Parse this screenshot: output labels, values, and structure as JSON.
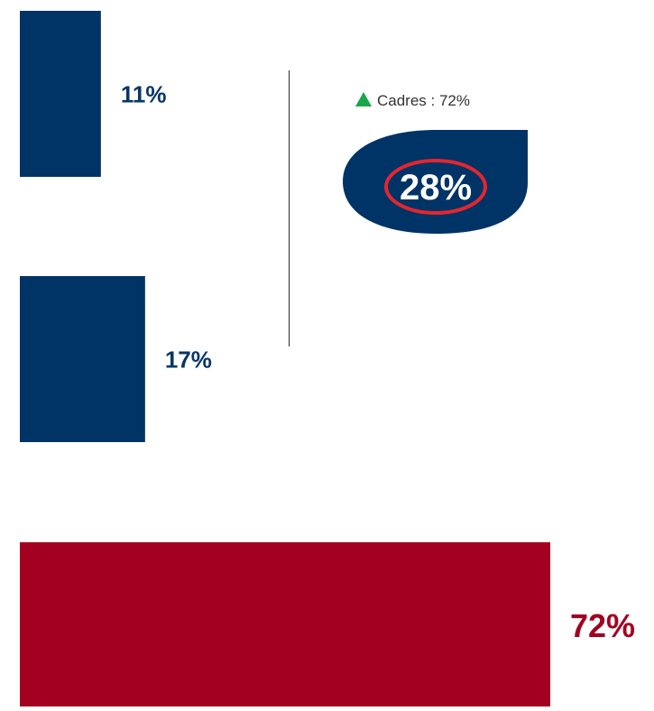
{
  "chart_data": {
    "type": "bar",
    "orientation": "horizontal",
    "categories": [
      "",
      "",
      ""
    ],
    "values": [
      11,
      17,
      72
    ],
    "value_labels": [
      "11%",
      "17%",
      "72%"
    ],
    "unit": "%",
    "xlim": [
      0,
      100
    ],
    "grid": false,
    "legend": "none",
    "colors": [
      "#003366",
      "#003366",
      "#A30021"
    ],
    "annotation": {
      "caption": "Cadres : 72%",
      "caption_icon": "up-triangle-icon",
      "caption_icon_color": "#1AA64B",
      "badge_value": "28%",
      "badge_fill": "#003366",
      "badge_ring_color": "#E3262F"
    }
  }
}
